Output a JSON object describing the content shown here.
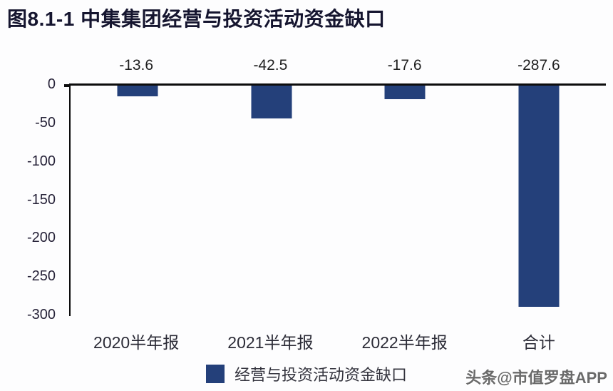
{
  "title": "图8.1-1 中集集团经营与投资活动资金缺口",
  "watermark": "头条@市值罗盘APP",
  "colors": {
    "bar": "#24407a",
    "axis": "#0d0d0d",
    "title_text": "#15152f",
    "background": "#fdfdfe"
  },
  "legend": {
    "label": "经营与投资活动资金缺口",
    "position": "bottom",
    "swatch_color": "#24407a"
  },
  "chart_data": {
    "type": "bar",
    "title": "图8.1-1 中集集团经营与投资活动资金缺口",
    "categories": [
      "2020半年报",
      "2021半年报",
      "2022半年报",
      "合计"
    ],
    "values": [
      -13.6,
      -42.5,
      -17.6,
      -287.6
    ],
    "value_labels": [
      "-13.6",
      "-42.5",
      "-17.6",
      "-287.6"
    ],
    "series_name": "经营与投资活动资金缺口",
    "y_ticks": [
      0,
      -50,
      -100,
      -150,
      -200,
      -250,
      -300
    ],
    "ylim": [
      -300,
      0
    ],
    "xlabel": "",
    "ylabel": "",
    "grid": false,
    "legend_position": "bottom",
    "bar_color": "#24407a"
  }
}
